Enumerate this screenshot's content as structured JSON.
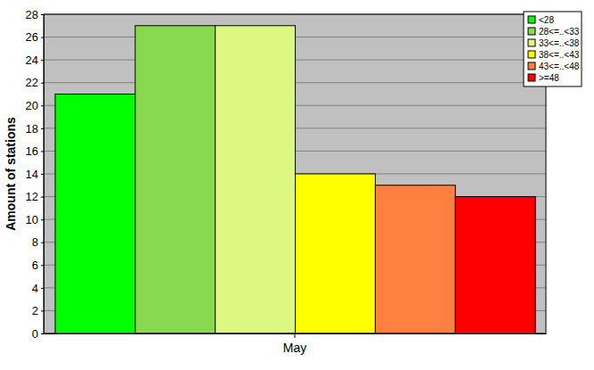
{
  "chart_data": {
    "type": "bar",
    "y_label": "Amount of stations",
    "categories": [
      "May"
    ],
    "series": [
      {
        "name": "<28",
        "color": "#00ff00",
        "values": [
          21
        ]
      },
      {
        "name": "28<=..<33",
        "color": "#88d850",
        "values": [
          27
        ]
      },
      {
        "name": "33<=..<38",
        "color": "#ddf880",
        "values": [
          27
        ]
      },
      {
        "name": "38<=..<43",
        "color": "#ffff00",
        "values": [
          14
        ]
      },
      {
        "name": "43<=..<48",
        "color": "#ff8040",
        "values": [
          13
        ]
      },
      {
        "name": ">=48",
        "color": "#ff0000",
        "values": [
          12
        ]
      }
    ],
    "ylim": [
      0,
      28
    ],
    "yticks": [
      0,
      2,
      4,
      6,
      8,
      10,
      12,
      14,
      16,
      18,
      20,
      22,
      24,
      26,
      28
    ],
    "grid": true,
    "legend": "upper right"
  }
}
